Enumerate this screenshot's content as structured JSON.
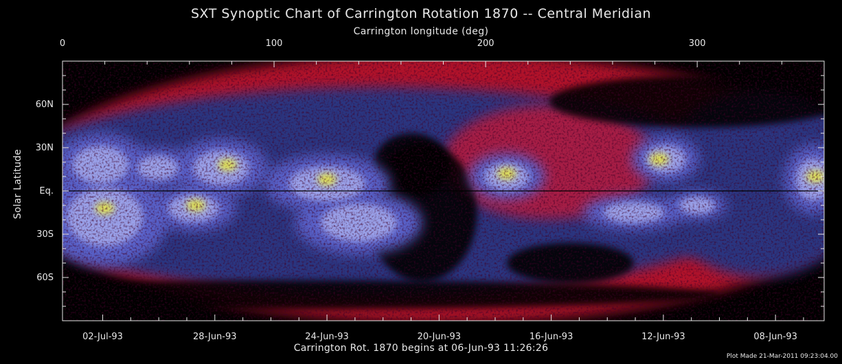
{
  "chart_data": {
    "type": "heatmap",
    "title": "SXT Synoptic Chart of Carrington Rotation 1870 -- Central Meridian",
    "top_axis": {
      "label": "Carrington longitude (deg)",
      "range": [
        0,
        360
      ],
      "ticks": [
        0,
        100,
        200,
        300
      ],
      "tick_labels": [
        "0",
        "100",
        "200",
        "300"
      ]
    },
    "y_axis": {
      "label": "Solar Latitude",
      "range": [
        -90,
        90
      ],
      "ticks": [
        60,
        30,
        0,
        -30,
        -60
      ],
      "tick_labels": [
        "60N",
        "30N",
        "Eq.",
        "30S",
        "60S"
      ]
    },
    "bottom_axis": {
      "label": "Carrington Rot. 1870 begins at 06-Jun-93 11:26:26",
      "date_ticks": [
        {
          "label": "02-Jul-93",
          "longitude": 19
        },
        {
          "label": "28-Jun-93",
          "longitude": 72
        },
        {
          "label": "24-Jun-93",
          "longitude": 125
        },
        {
          "label": "20-Jun-93",
          "longitude": 178
        },
        {
          "label": "16-Jun-93",
          "longitude": 231
        },
        {
          "label": "12-Jun-93",
          "longitude": 284
        },
        {
          "label": "08-Jun-93",
          "longitude": 337
        }
      ]
    },
    "footer": "Plot Made 21-Mar-2011 09:23:04.00",
    "colors": {
      "background": "#000000",
      "quiet_blue": "#2a3580",
      "mid_blue": "#5860c8",
      "bright_lavender": "#aab0f0",
      "hot_yellow": "#e8e840",
      "edge_red": "#d01830"
    },
    "bright_regions": [
      {
        "name": "core",
        "longitude": 20,
        "latitude": -12
      },
      {
        "name": "core",
        "longitude": 63,
        "latitude": -10
      },
      {
        "name": "core",
        "longitude": 78,
        "latitude": 18
      },
      {
        "name": "core",
        "longitude": 125,
        "latitude": 8
      },
      {
        "name": "core",
        "longitude": 210,
        "latitude": 12
      },
      {
        "name": "core",
        "longitude": 282,
        "latitude": 22
      },
      {
        "name": "core",
        "longitude": 356,
        "latitude": 10
      }
    ]
  }
}
